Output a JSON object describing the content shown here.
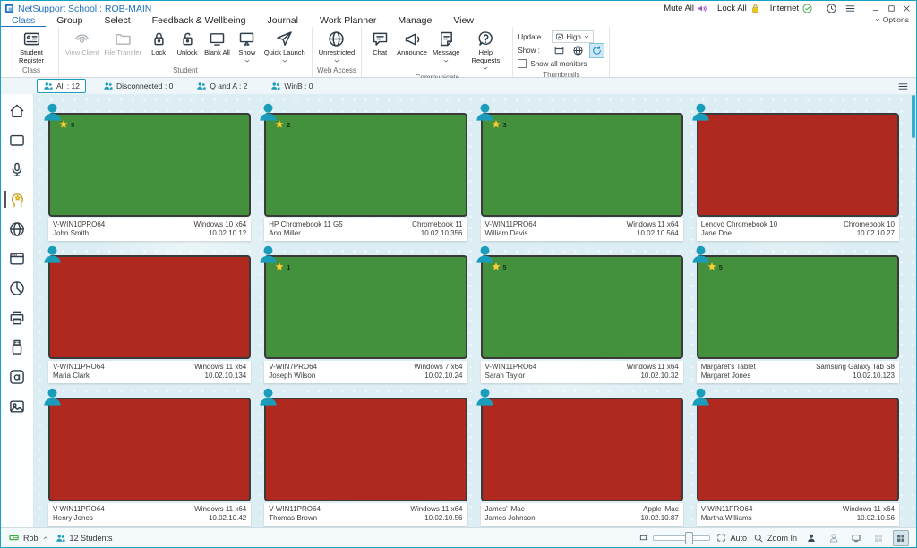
{
  "window": {
    "app_icon": "netsupport-logo",
    "title": "NetSupport School : ROB-MAIN",
    "quick_actions": [
      {
        "label": "Mute All",
        "icon": "speaker-icon"
      },
      {
        "label": "Lock All",
        "icon": "padlock-icon"
      },
      {
        "label": "Internet",
        "icon": "check-circle-icon"
      }
    ],
    "titlebar_icons": [
      "clock-icon",
      "hamburger-icon"
    ],
    "controls": [
      "minimize",
      "maximize",
      "close"
    ],
    "options_label": "Options"
  },
  "menu_tabs": [
    {
      "label": "Class",
      "active": true
    },
    {
      "label": "Group"
    },
    {
      "label": "Select"
    },
    {
      "label": "Feedback & Wellbeing"
    },
    {
      "label": "Journal"
    },
    {
      "label": "Work Planner"
    },
    {
      "label": "Manage"
    },
    {
      "label": "View"
    }
  ],
  "ribbon": {
    "groups": [
      {
        "label": "Class",
        "buttons": [
          {
            "label": "Student Register",
            "icon": "register-icon"
          }
        ]
      },
      {
        "label": "Student",
        "buttons": [
          {
            "label": "View Client",
            "icon": "view-client-icon",
            "disabled": true
          },
          {
            "label": "File Transfer",
            "icon": "file-transfer-icon",
            "disabled": true
          },
          {
            "label": "Lock",
            "icon": "lock-icon"
          },
          {
            "label": "Unlock",
            "icon": "unlock-icon"
          },
          {
            "label": "Blank All",
            "icon": "blank-monitor-icon"
          },
          {
            "label": "Show",
            "icon": "show-monitor-icon",
            "caret": true
          },
          {
            "label": "Quick Launch",
            "icon": "quick-launch-icon",
            "caret": true
          }
        ]
      },
      {
        "label": "Web Access",
        "buttons": [
          {
            "label": "Unrestricted",
            "icon": "globe-icon",
            "caret": true
          }
        ]
      },
      {
        "label": "Communicate",
        "buttons": [
          {
            "label": "Chat",
            "icon": "chat-icon"
          },
          {
            "label": "Announce",
            "icon": "announce-icon"
          },
          {
            "label": "Message",
            "icon": "message-icon",
            "caret": true
          },
          {
            "label": "Help Requests",
            "icon": "help-icon",
            "caret": true
          }
        ]
      }
    ],
    "thumbnails_group": {
      "label": "Thumbnails",
      "update_label": "Update :",
      "update_value": "High",
      "show_label": "Show :",
      "show_icons": [
        "window-icon",
        "globe-icon",
        "refresh-icon"
      ],
      "checkbox_label": "Show all monitors",
      "checkbox_checked": false
    }
  },
  "group_tabs": [
    {
      "label": "All : 12",
      "active": true
    },
    {
      "label": "Disconnected : 0"
    },
    {
      "label": "Q and A : 2"
    },
    {
      "label": "WinB : 0"
    }
  ],
  "sidebar_items": [
    {
      "icon": "home-icon"
    },
    {
      "icon": "monitor-icon"
    },
    {
      "icon": "microphone-icon"
    },
    {
      "icon": "wellbeing-icon",
      "active": true
    },
    {
      "icon": "globe-icon"
    },
    {
      "icon": "browser-icon"
    },
    {
      "icon": "pie-chart-icon"
    },
    {
      "icon": "printer-icon"
    },
    {
      "icon": "usb-drive-icon"
    },
    {
      "icon": "typing-icon"
    },
    {
      "icon": "image-icon"
    }
  ],
  "tiles": [
    {
      "machine": "V-WIN10PRO64",
      "user": "John Smith",
      "os": "Windows 10 x64",
      "ip": "10.02.10.12",
      "screen": "green",
      "stars": 5
    },
    {
      "machine": "HP Chromebook 11 G5",
      "user": "Ann Miller",
      "os": "Chromebook 11",
      "ip": "10.02.10.356",
      "screen": "green",
      "stars": 2
    },
    {
      "machine": "V-WIN11PRO64",
      "user": "William Davis",
      "os": "Windows 11 x64",
      "ip": "10.02.10.564",
      "screen": "green",
      "stars": 3
    },
    {
      "machine": "Lenovo Chromebook 10",
      "user": "Jane Doe",
      "os": "Chromebook 10",
      "ip": "10.02.10.27",
      "screen": "red",
      "stars": null
    },
    {
      "machine": "V-WIN11PRO64",
      "user": "Maria Clark",
      "os": "Windows 11 x64",
      "ip": "10.02.10.134",
      "screen": "red",
      "stars": null
    },
    {
      "machine": "V-WIN7PRO64",
      "user": "Joseph Wilson",
      "os": "Windows 7 x64",
      "ip": "10.02.10.24",
      "screen": "green",
      "stars": 1
    },
    {
      "machine": "V-WIN11PRO64",
      "user": "Sarah Taylor",
      "os": "Windows 11 x64",
      "ip": "10.02.10.32",
      "screen": "green",
      "stars": 5
    },
    {
      "machine": "Margaret's Tablet",
      "user": "Margaret Jones",
      "os": "Samsung Galaxy Tab S8",
      "ip": "10.02.10.123",
      "screen": "green",
      "stars": 5
    },
    {
      "machine": "V-WIN11PRO64",
      "user": "Henry Jones",
      "os": "Windows 11 x64",
      "ip": "10.02.10.42",
      "screen": "red",
      "stars": null
    },
    {
      "machine": "V-WIN11PRO64",
      "user": "Thomas Brown",
      "os": "Windows 11 x64",
      "ip": "10.02.10.56",
      "screen": "red",
      "stars": null
    },
    {
      "machine": "James' iMac",
      "user": "James Johnson",
      "os": "Apple iMac",
      "ip": "10.02.10.87",
      "screen": "red",
      "stars": null
    },
    {
      "machine": "V-WIN11PRO64",
      "user": "Martha Williams",
      "os": "Windows 11 x64",
      "ip": "10.02.10.56",
      "screen": "red",
      "stars": null
    }
  ],
  "statusbar": {
    "connection_label": "Rob",
    "students_label": "12 Students",
    "auto_label": "Auto",
    "zoom_label": "Zoom In"
  },
  "colors": {
    "accent": "#1b9cba",
    "screen_green": "#44913d",
    "screen_red": "#b0291f",
    "title_blue": "#1f6fc0"
  }
}
